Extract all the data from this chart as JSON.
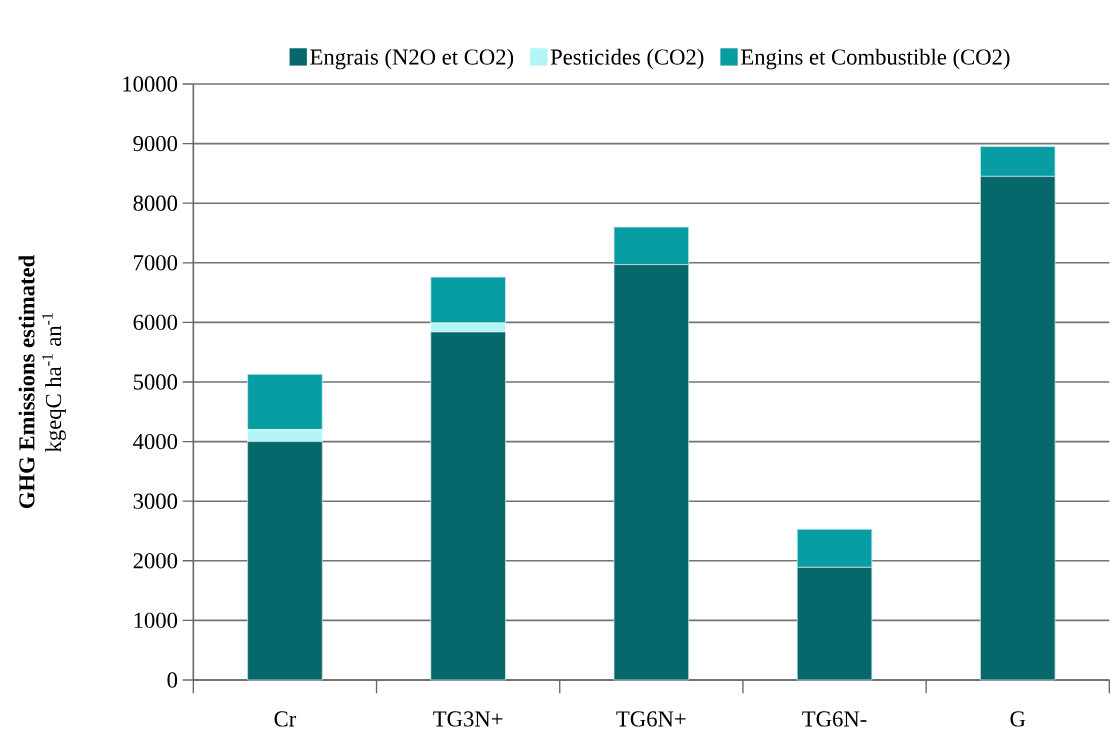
{
  "chart_data": {
    "type": "bar",
    "stacked": true,
    "ylabel": "**GHG Emissions estimated** kgeqC ha$^{-1}$ an$^{-1}$",
    "categories": [
      "Cr",
      "TG3N+",
      "TG6N+",
      "TG6N-",
      "G"
    ],
    "series": [
      {
        "name": "Engrais (N2O et CO2)",
        "color": "#07686c",
        "values": [
          4000,
          5840,
          6970,
          1890,
          8450
        ]
      },
      {
        "name": "Pesticides (CO2)",
        "color": "#b3f5f7",
        "values": [
          200,
          150,
          0,
          0,
          0
        ]
      },
      {
        "name": "Engins et Combustible (CO2)",
        "color": "#089da3",
        "values": [
          930,
          770,
          630,
          640,
          500
        ]
      }
    ],
    "ylim": [
      0,
      10000
    ],
    "yticks": [
      0,
      1000,
      2000,
      3000,
      4000,
      5000,
      6000,
      7000,
      8000,
      9000,
      10000
    ],
    "grid": "y",
    "legend": "top"
  }
}
